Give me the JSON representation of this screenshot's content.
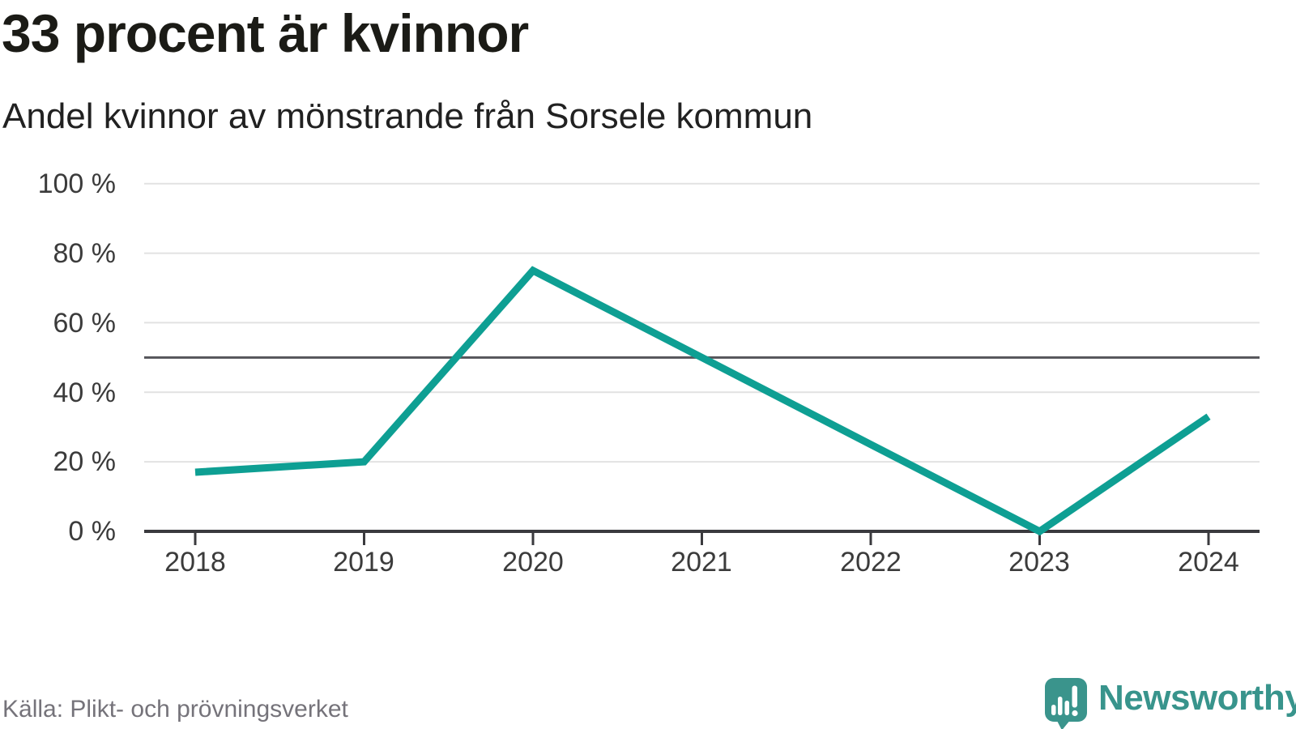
{
  "chart_data": {
    "type": "line",
    "title": "33 procent är kvinnor",
    "subtitle": "Andel kvinnor av mönstrande från Sorsele kommun",
    "source": "Källa: Plikt- och prövningsverket",
    "categories": [
      "2018",
      "2019",
      "2020",
      "2021",
      "2022",
      "2023",
      "2024"
    ],
    "series": [
      {
        "name": "Andel kvinnor av mönstrande",
        "values": [
          17,
          20,
          75,
          50,
          25,
          0,
          33
        ]
      }
    ],
    "y_ticks": [
      "100 %",
      "80 %",
      "60 %",
      "40 %",
      "20 %",
      "0 %"
    ],
    "ylim": [
      0,
      100
    ],
    "reference_line_value": 50,
    "grid": true,
    "legend": "none",
    "colors": {
      "line": "#0e9f93",
      "reference_line": "#55555a",
      "gridline": "#e2e2e2",
      "axis": "#3a3a3e"
    }
  },
  "brand": {
    "name": "Newsworthy",
    "logo_icon": "speech-bubble-chart-icon",
    "color": "#3a948c"
  }
}
